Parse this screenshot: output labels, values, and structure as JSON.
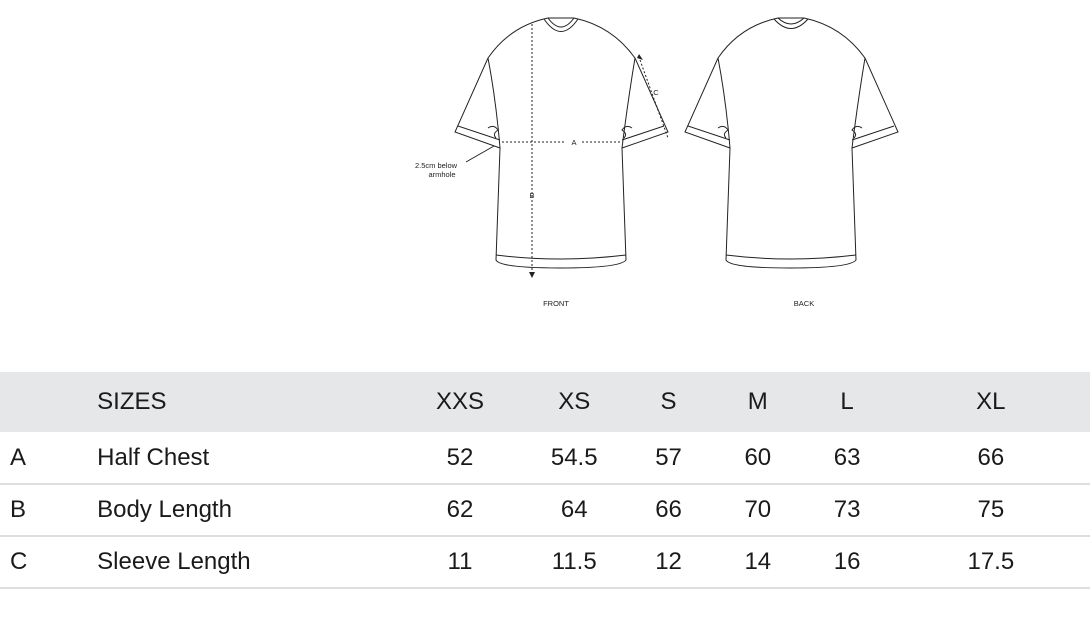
{
  "diagram": {
    "label_front": "FRONT",
    "label_back": "BACK",
    "label_a": "A",
    "label_b": "B",
    "label_c": "C",
    "annotation_line1": "2.5cm below",
    "annotation_line2": "armhole"
  },
  "table": {
    "header_label": "SIZES",
    "sizes": [
      "XXS",
      "XS",
      "S",
      "M",
      "L",
      "XL"
    ],
    "rows": [
      {
        "key": "A",
        "name": "Half Chest",
        "values": [
          "52",
          "54.5",
          "57",
          "60",
          "63",
          "66"
        ]
      },
      {
        "key": "B",
        "name": "Body Length",
        "values": [
          "62",
          "64",
          "66",
          "70",
          "73",
          "75"
        ]
      },
      {
        "key": "C",
        "name": "Sleeve Length",
        "values": [
          "11",
          "11.5",
          "12",
          "14",
          "16",
          "17.5"
        ]
      }
    ]
  }
}
